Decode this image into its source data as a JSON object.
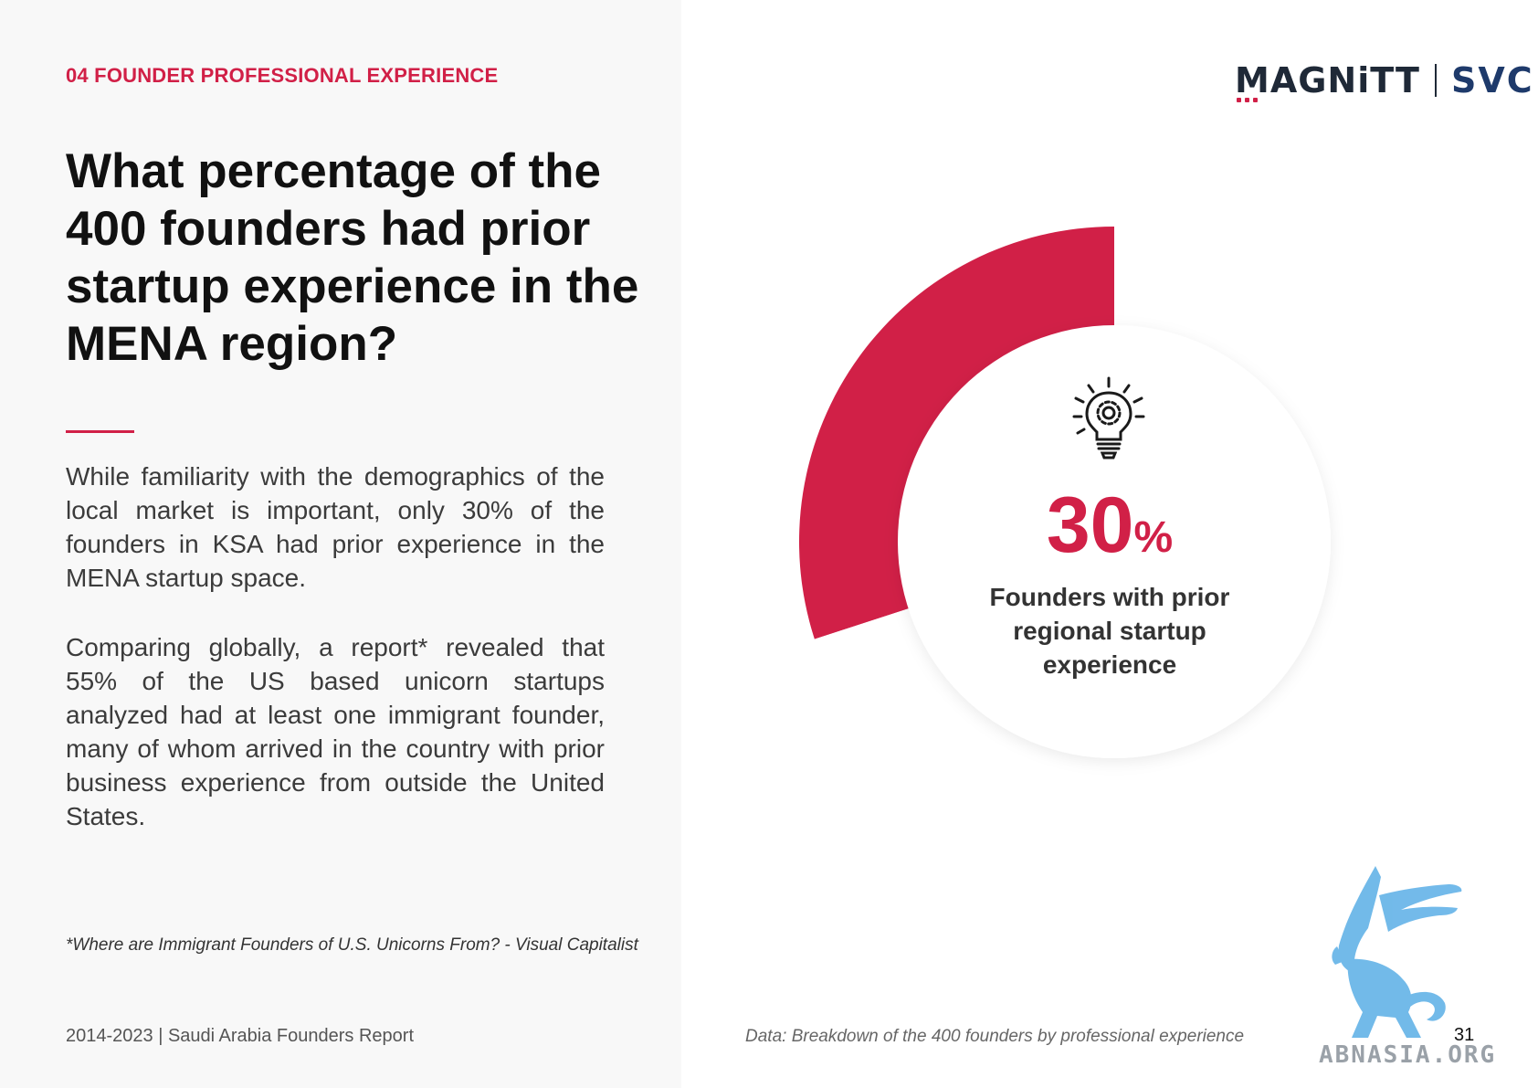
{
  "section": {
    "label": "04 FOUNDER PROFESSIONAL EXPERIENCE"
  },
  "headline": "What percentage of the 400 founders had prior startup experience in the MENA region?",
  "body": {
    "paragraph1": "While familiarity with the demographics of the local market is important, only 30% of the founders in KSA had prior experience in the MENA startup space.",
    "paragraph2": "Comparing globally, a report* revealed that 55% of the US based unicorn startups analyzed had at least one immigrant founder, many of whom arrived in the country with prior business experience from outside the United States."
  },
  "footnote": "*Where are Immigrant Founders of U.S. Unicorns From? - Visual Capitalist",
  "footer": {
    "report": "2014-2023 | Saudi Arabia Founders Report",
    "page_number": "31"
  },
  "logos": {
    "magnitt": "MAGNiTT",
    "svc": "SVC"
  },
  "chart_data": {
    "type": "pie",
    "style": "donut-gauge",
    "slices": [
      {
        "label": "Founders with prior regional startup experience",
        "value": 30,
        "color": "#d12047"
      },
      {
        "label": "",
        "value": 70,
        "color": "#ffffff"
      }
    ],
    "center_value": "30",
    "center_unit": "%",
    "center_label": "Founders with prior regional startup experience",
    "source": "Data: Breakdown of the 400 founders by professional experience"
  },
  "icons": {
    "center_icon": "lightbulb-gear-icon"
  },
  "colors": {
    "accent": "#d12047",
    "text_dark": "#111111",
    "panel_bg": "#f8f8f8"
  },
  "watermark": {
    "text": "ABNASIA.ORG"
  }
}
